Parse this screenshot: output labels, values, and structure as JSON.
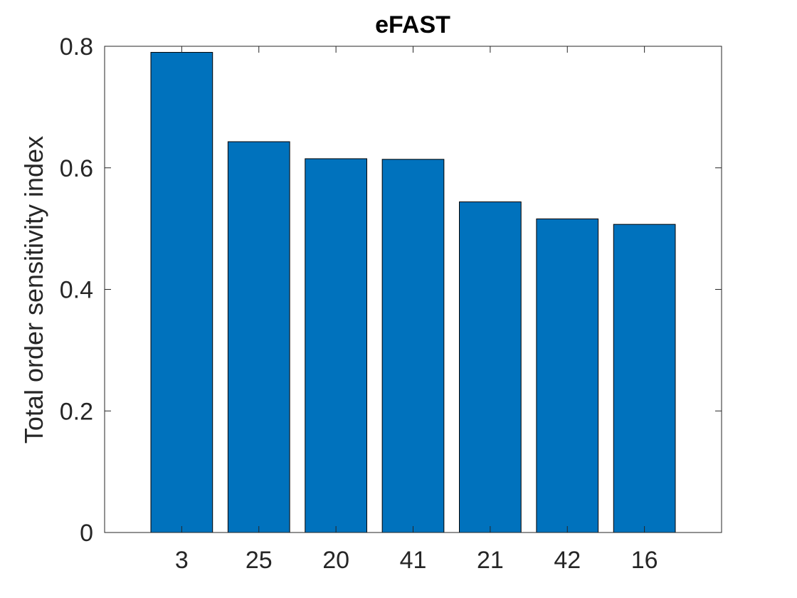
{
  "chart_data": {
    "type": "bar",
    "title": "eFAST",
    "xlabel": "",
    "ylabel": "Total order sensitivity index",
    "categories": [
      "3",
      "25",
      "20",
      "41",
      "21",
      "42",
      "16"
    ],
    "values": [
      0.79,
      0.643,
      0.615,
      0.614,
      0.544,
      0.516,
      0.507
    ],
    "ylim": [
      0,
      0.8
    ],
    "yticks": [
      "0",
      "0.2",
      "0.4",
      "0.6",
      "0.8"
    ],
    "bar_color": "#0072BD",
    "grid": false
  }
}
